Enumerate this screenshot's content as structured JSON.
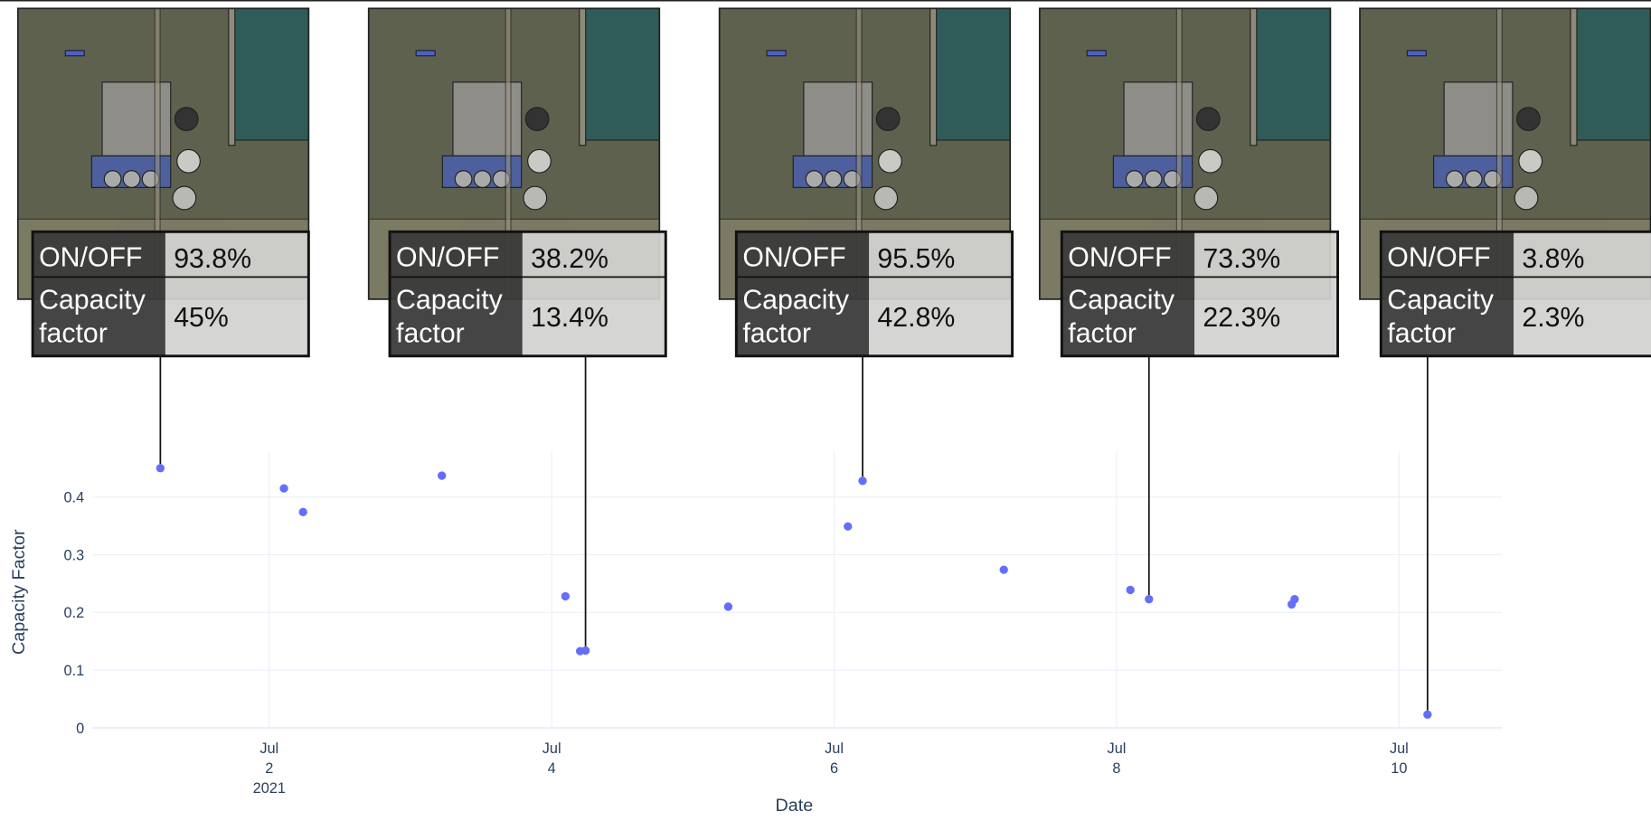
{
  "chart_data": {
    "type": "scatter",
    "x_label": "Date",
    "y_label": "Capacity Factor",
    "x": [
      "2021-07-01T05:30",
      "2021-07-02T02:30",
      "2021-07-02T05:45",
      "2021-07-03T05:20",
      "2021-07-04T02:20",
      "2021-07-04T04:50",
      "2021-07-04T05:45",
      "2021-07-05T06:00",
      "2021-07-06T02:20",
      "2021-07-06T04:50",
      "2021-07-07T04:50",
      "2021-07-08T02:20",
      "2021-07-08T05:30",
      "2021-07-09T05:45",
      "2021-07-09T06:15",
      "2021-07-10T04:50"
    ],
    "values": [
      0.45,
      0.415,
      0.374,
      0.437,
      0.228,
      0.133,
      0.134,
      0.21,
      0.349,
      0.428,
      0.274,
      0.239,
      0.223,
      0.214,
      0.223,
      0.023
    ],
    "color": "#636efa",
    "xlim": [
      "2021-06-30T18:00",
      "2021-07-10T17:30"
    ],
    "ylim": [
      0,
      0.48
    ],
    "xticks": [
      {
        "value": "2021-07-02T00:00",
        "label": "Jul 2\n2021"
      },
      {
        "value": "2021-07-04T00:00",
        "label": "Jul 4"
      },
      {
        "value": "2021-07-06T00:00",
        "label": "Jul 6"
      },
      {
        "value": "2021-07-08T00:00",
        "label": "Jul 8"
      },
      {
        "value": "2021-07-10T00:00",
        "label": "Jul 10"
      }
    ],
    "yticks": [
      0,
      0.1,
      0.2,
      0.3,
      0.4
    ],
    "grid": true,
    "annotations": [
      {
        "on_off_label": "ON/OFF",
        "on_off": "93.8%",
        "capacity_label": "Capacity factor",
        "capacity": "45%"
      },
      {
        "on_off_label": "ON/OFF",
        "on_off": "38.2%",
        "capacity_label": "Capacity factor",
        "capacity": "13.4%"
      },
      {
        "on_off_label": "ON/OFF",
        "on_off": "95.5%",
        "capacity_label": "Capacity factor",
        "capacity": "42.8%"
      },
      {
        "on_off_label": "ON/OFF",
        "on_off": "73.3%",
        "capacity_label": "Capacity factor",
        "capacity": "22.3%"
      },
      {
        "on_off_label": "ON/OFF",
        "on_off": "3.8%",
        "capacity_label": "Capacity factor",
        "capacity": "2.3%"
      }
    ]
  }
}
